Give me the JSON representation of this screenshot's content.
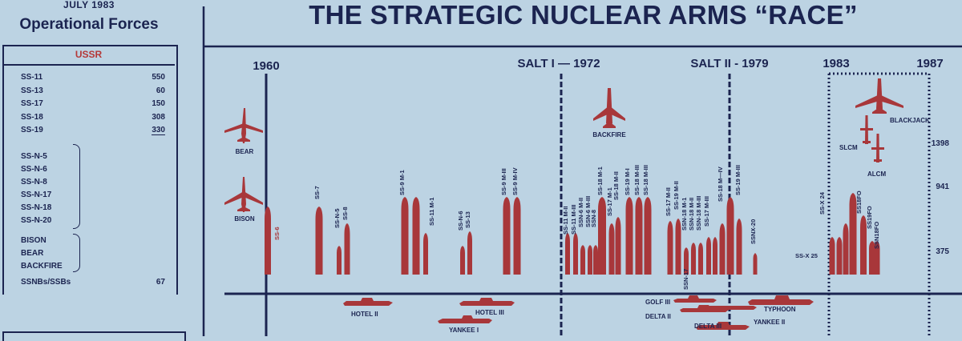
{
  "sidebar": {
    "date": "JULY 1983",
    "title": "Operational Forces",
    "country": "USSR",
    "icbm": [
      {
        "name": "SS-11",
        "count": "550"
      },
      {
        "name": "SS-13",
        "count": "60"
      },
      {
        "name": "SS-17",
        "count": "150"
      },
      {
        "name": "SS-18",
        "count": "308"
      },
      {
        "name": "SS-19",
        "count": "330"
      }
    ],
    "icbm_total": "1398",
    "slbm": [
      "SS-N-5",
      "SS-N-6",
      "SS-N-8",
      "SS-N-17",
      "SS-N-18",
      "SS-N-20"
    ],
    "slbm_total": "941",
    "bombers": [
      "BISON",
      "BEAR",
      "BACKFIRE"
    ],
    "bombers_total": "375",
    "subs": {
      "name": "SSNBs/SSBs",
      "count": "67"
    }
  },
  "chart_data": {
    "type": "timeline",
    "title": "THE STRATEGIC NUCLEAR ARMS “RACE”",
    "markers": [
      {
        "label": "1960",
        "year": 1960,
        "style": "solid"
      },
      {
        "label": "SALT I — 1972",
        "year": 1972,
        "style": "dashed"
      },
      {
        "label": "SALT II - 1979",
        "year": 1979,
        "style": "dashed"
      },
      {
        "label": "1983",
        "year": 1983,
        "style": "dotted"
      },
      {
        "label": "1987",
        "year": 1987,
        "style": "dotted"
      }
    ],
    "aircraft": [
      {
        "label": "BEAR",
        "era": "pre-1960"
      },
      {
        "label": "BISON",
        "era": "pre-1960"
      },
      {
        "label": "BACKFIRE",
        "era": "1972-1979"
      },
      {
        "label": "BLACKJACK",
        "era": "1983-1987"
      },
      {
        "label": "SLCM",
        "era": "1983-1987"
      },
      {
        "label": "ALCM",
        "era": "1983-1987"
      }
    ],
    "missile_labels": [
      "SS-6",
      "SS-7",
      "SS-N-5",
      "SS-8",
      "SS-9 M-1",
      "SS-11 M-1",
      "SS-N-6",
      "SS-13",
      "SS-9 M-III",
      "SS-9 M-IV",
      "SS-11 M-II",
      "SS-11 M-III",
      "SSN-6 M-II",
      "SSN-6 M-III",
      "SSN-8",
      "SS-18 M-1",
      "SS-17 M-1",
      "SS-18 M-II",
      "SS-19 M-I",
      "SS-18 M-III",
      "SS-18 M-III",
      "SS-17 M-II",
      "SS-19 M-II",
      "SSN-18 M-1",
      "SSN-18 M-II",
      "SSN-18 M-III",
      "SS-17 M-III",
      "SS-18 M—IV",
      "SS-19 M-III",
      "SSNX-20",
      "SS-X 24",
      "SS18FO",
      "SS19FO",
      "SSN18FO",
      "SS-X 25",
      "SSN-17"
    ],
    "submarine_labels": [
      "HOTEL II",
      "HOTEL III",
      "YANKEE I",
      "GOLF III",
      "DELTA II",
      "DELTA III",
      "TYPHOON",
      "YANKEE II"
    ]
  }
}
